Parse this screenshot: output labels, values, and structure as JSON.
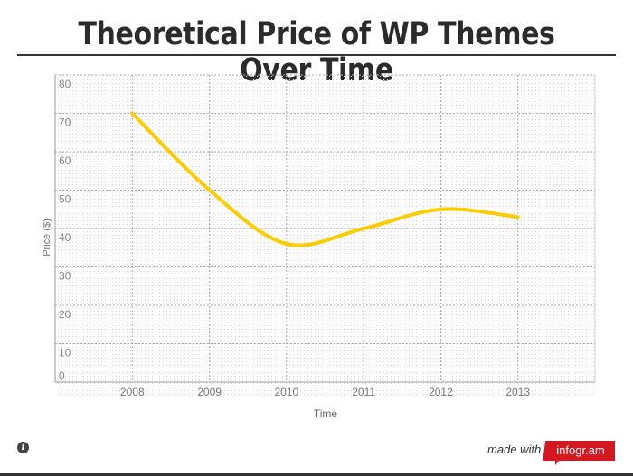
{
  "chart_data": {
    "type": "line",
    "title": "Theoretical Price of WP Themes Over Time",
    "xlabel": "Time",
    "ylabel": "Price ($)",
    "categories": [
      "2008",
      "2009",
      "2010",
      "2011",
      "2012",
      "2013"
    ],
    "series": [
      {
        "values": [
          70,
          50,
          36,
          40,
          45,
          43
        ],
        "color": "#ffcc00"
      }
    ],
    "ylim": [
      0,
      80
    ],
    "yticks": [
      0,
      10,
      20,
      30,
      40,
      50,
      60,
      70,
      80
    ],
    "xlim": [
      2007,
      2014
    ],
    "grid": true,
    "smooth": true
  },
  "footer": {
    "made_with": "made with",
    "brand": "infogr.am",
    "info_icon": "info-icon"
  }
}
